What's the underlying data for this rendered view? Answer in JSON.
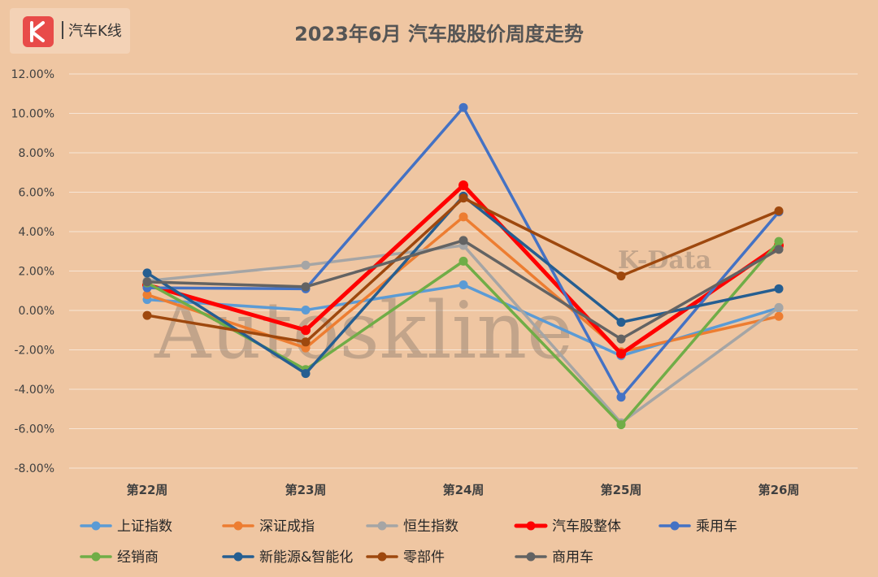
{
  "logo": {
    "text": "汽车K线"
  },
  "watermark": {
    "main": "Autoskline",
    "sub": "K-Data"
  },
  "chart_data": {
    "type": "line",
    "title": "2023年6月 汽车股股价周度走势",
    "categories": [
      "第22周",
      "第23周",
      "第24周",
      "第25周",
      "第26周"
    ],
    "ylim": [
      -8,
      12
    ],
    "yticks": [
      "-8.00%",
      "-6.00%",
      "-4.00%",
      "-2.00%",
      "0.00%",
      "2.00%",
      "4.00%",
      "6.00%",
      "8.00%",
      "10.00%",
      "12.00%"
    ],
    "grid": true,
    "legend_position": "bottom",
    "series": [
      {
        "name": "上证指数",
        "color": "#5b9bd5",
        "values": [
          0.55,
          0.02,
          1.3,
          -2.3,
          0.13
        ]
      },
      {
        "name": "深证成指",
        "color": "#ed7d31",
        "values": [
          0.8,
          -1.9,
          4.75,
          -2.1,
          -0.3
        ]
      },
      {
        "name": "恒生指数",
        "color": "#a5a5a5",
        "values": [
          1.5,
          2.3,
          3.3,
          -5.7,
          0.15
        ]
      },
      {
        "name": "汽车股整体",
        "color": "#ff0000",
        "values": [
          1.3,
          -1.0,
          6.35,
          -2.2,
          3.3
        ]
      },
      {
        "name": "乘用车",
        "color": "#4472c4",
        "values": [
          1.15,
          1.1,
          10.3,
          -4.4,
          5.0
        ]
      },
      {
        "name": "经销商",
        "color": "#70ad47",
        "values": [
          1.4,
          -3.0,
          2.5,
          -5.8,
          3.5
        ]
      },
      {
        "name": "新能源&智能化",
        "color": "#255e91",
        "values": [
          1.9,
          -3.2,
          5.8,
          -0.6,
          1.1
        ]
      },
      {
        "name": "零部件",
        "color": "#9e480e",
        "values": [
          -0.25,
          -1.6,
          5.7,
          1.75,
          5.05
        ]
      },
      {
        "name": "商用车",
        "color": "#636363",
        "values": [
          1.45,
          1.2,
          3.55,
          -1.45,
          3.1
        ]
      }
    ]
  }
}
